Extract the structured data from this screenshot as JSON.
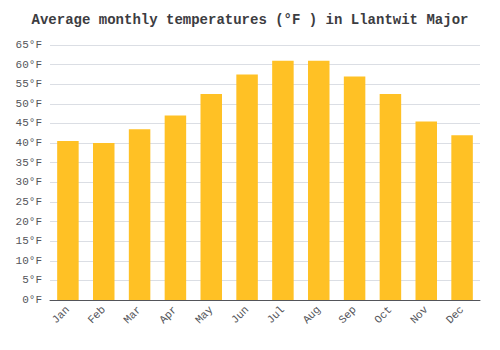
{
  "chart_data": {
    "type": "bar",
    "title": "Average monthly temperatures (°F ) in Llantwit Major",
    "categories": [
      "Jan",
      "Feb",
      "Mar",
      "Apr",
      "May",
      "Jun",
      "Jul",
      "Aug",
      "Sep",
      "Oct",
      "Nov",
      "Dec"
    ],
    "values": [
      40.5,
      40.0,
      43.5,
      47.0,
      52.5,
      57.5,
      61.0,
      61.0,
      57.0,
      52.5,
      45.5,
      42.0
    ],
    "color": "#FFC125",
    "ylim": [
      0,
      65
    ],
    "yticks": [
      {
        "value": 0,
        "label": "0°F"
      },
      {
        "value": 5,
        "label": "5°F"
      },
      {
        "value": 10,
        "label": "10°F"
      },
      {
        "value": 15,
        "label": "15°F"
      },
      {
        "value": 20,
        "label": "20°F"
      },
      {
        "value": 25,
        "label": "25°F"
      },
      {
        "value": 30,
        "label": "30°F"
      },
      {
        "value": 35,
        "label": "35°F"
      },
      {
        "value": 40,
        "label": "40°F"
      },
      {
        "value": 45,
        "label": "45°F"
      },
      {
        "value": 50,
        "label": "50°F"
      },
      {
        "value": 55,
        "label": "55°F"
      },
      {
        "value": 60,
        "label": "60°F"
      },
      {
        "value": 65,
        "label": "65°F"
      }
    ],
    "grid": true
  }
}
